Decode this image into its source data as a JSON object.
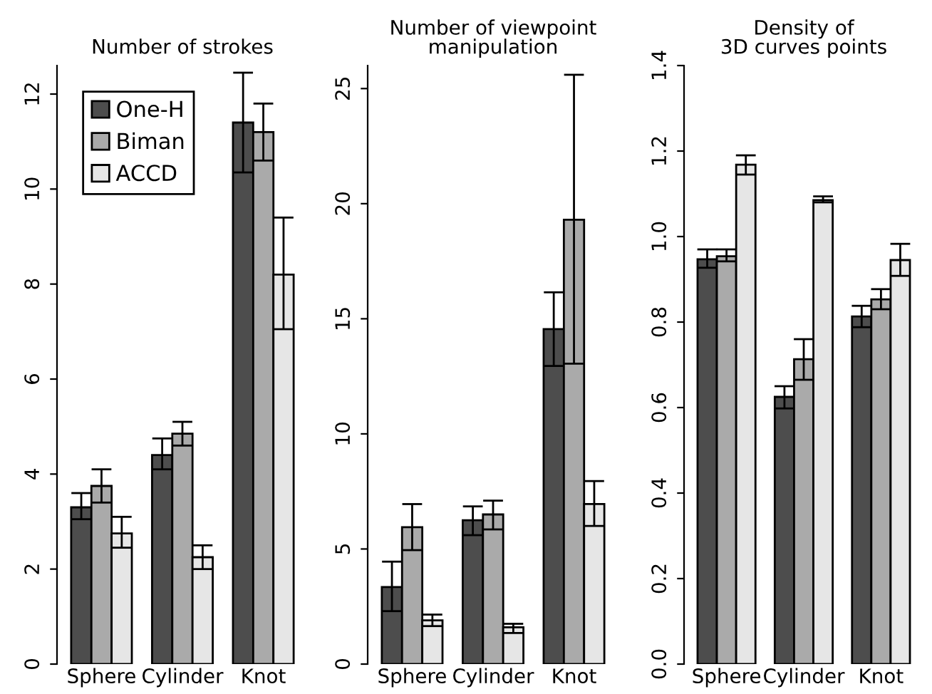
{
  "chart_data": [
    {
      "type": "bar",
      "title": "Number of strokes",
      "categories": [
        "Sphere",
        "Cylinder",
        "Knot"
      ],
      "ylim": [
        0,
        12.6
      ],
      "yticks": [
        0,
        2,
        4,
        6,
        8,
        10,
        12
      ],
      "grid": false,
      "legend": "top left",
      "series": [
        {
          "name": "One-H",
          "color": "#4d4d4d",
          "values": [
            3.3,
            4.4,
            11.4
          ],
          "errors": [
            [
              3.05,
              3.6
            ],
            [
              4.1,
              4.75
            ],
            [
              10.35,
              12.45
            ]
          ]
        },
        {
          "name": "Biman",
          "color": "#aaaaaa",
          "values": [
            3.75,
            4.85,
            11.2
          ],
          "errors": [
            [
              3.4,
              4.1
            ],
            [
              4.6,
              5.1
            ],
            [
              10.6,
              11.8
            ]
          ]
        },
        {
          "name": "ACCD",
          "color": "#e6e6e6",
          "values": [
            2.75,
            2.25,
            8.2
          ],
          "errors": [
            [
              2.45,
              3.1
            ],
            [
              2.0,
              2.5
            ],
            [
              7.05,
              9.4
            ]
          ]
        }
      ]
    },
    {
      "type": "bar",
      "title": "Number of viewpoint\nmanipulation",
      "categories": [
        "Sphere",
        "Cylinder",
        "Knot"
      ],
      "ylim": [
        0,
        26
      ],
      "yticks": [
        0,
        5,
        10,
        15,
        20,
        25
      ],
      "grid": false,
      "legend": false,
      "series": [
        {
          "color": "#4d4d4d",
          "values": [
            3.35,
            6.25,
            14.55
          ],
          "errors": [
            [
              2.3,
              4.45
            ],
            [
              5.6,
              6.85
            ],
            [
              12.95,
              16.15
            ]
          ]
        },
        {
          "color": "#aaaaaa",
          "values": [
            5.95,
            6.5,
            19.3
          ],
          "errors": [
            [
              4.95,
              6.95
            ],
            [
              5.85,
              7.1
            ],
            [
              13.05,
              25.6
            ]
          ]
        },
        {
          "color": "#e6e6e6",
          "values": [
            1.9,
            1.6,
            6.95
          ],
          "errors": [
            [
              1.65,
              2.15
            ],
            [
              1.35,
              1.75
            ],
            [
              6.0,
              7.95
            ]
          ]
        }
      ]
    },
    {
      "type": "bar",
      "title": "Density of\n3D curves points",
      "categories": [
        "Sphere",
        "Cylinder",
        "Knot"
      ],
      "ylim": [
        0,
        1.4
      ],
      "yticks": [
        {
          "value": 0,
          "label": "0.0"
        },
        0.2,
        0.4,
        0.6,
        0.8,
        {
          "value": 1,
          "label": "1.0"
        },
        1.2,
        1.4
      ],
      "grid": false,
      "legend": false,
      "series": [
        {
          "color": "#4d4d4d",
          "values": [
            0.947,
            0.625,
            0.813
          ],
          "errors": [
            [
              0.927,
              0.97
            ],
            [
              0.598,
              0.65
            ],
            [
              0.788,
              0.838
            ]
          ]
        },
        {
          "color": "#aaaaaa",
          "values": [
            0.954,
            0.713,
            0.853
          ],
          "errors": [
            [
              0.942,
              0.97
            ],
            [
              0.665,
              0.76
            ],
            [
              0.83,
              0.877
            ]
          ]
        },
        {
          "color": "#e6e6e6",
          "values": [
            1.168,
            1.085,
            0.945
          ],
          "errors": [
            [
              1.145,
              1.19
            ],
            [
              1.08,
              1.094
            ],
            [
              0.908,
              0.983
            ]
          ]
        }
      ]
    }
  ]
}
